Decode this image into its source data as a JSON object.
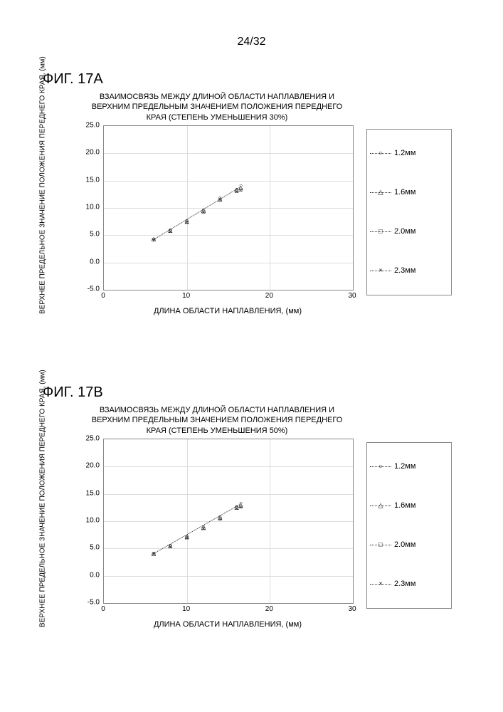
{
  "page_number": "24/32",
  "figA": {
    "label": "ФИГ. 17A",
    "title": "ВЗАИМОСВЯЗЬ МЕЖДУ ДЛИНОЙ ОБЛАСТИ НАПЛАВЛЕНИЯ И ВЕРХНИМ ПРЕДЕЛЬНЫМ ЗНАЧЕНИЕМ ПОЛОЖЕНИЯ ПЕРЕДНЕГО КРАЯ (СТЕПЕНЬ УМЕНЬШЕНИЯ 30%)",
    "ylabel": "ВЕРХНЕЕ ПРЕДЕЛЬНОЕ ЗНАЧЕНИЕ ПОЛОЖЕНИЯ ПЕРЕДНЕГО КРАЯ, (мм)",
    "xlabel": "ДЛИНА ОБЛАСТИ НАПЛАВЛЕНИЯ, (мм)",
    "ylim": [
      -5,
      25
    ],
    "ytick_step": 5,
    "xlim": [
      0,
      30
    ],
    "xtick_step": 10,
    "yticks": [
      "-5.0",
      "0.0",
      "5.0",
      "10.0",
      "15.0",
      "20.0",
      "25.0"
    ],
    "xticks": [
      "0",
      "10",
      "20",
      "30"
    ],
    "series": [
      {
        "name": "1.2мм",
        "marker": "○",
        "x": [
          6,
          8,
          10,
          12,
          14,
          16,
          16.5
        ],
        "y": [
          4.3,
          6.0,
          7.7,
          9.6,
          11.8,
          13.4,
          14.0
        ]
      },
      {
        "name": "1.6мм",
        "marker": "△",
        "x": [
          6,
          8,
          10,
          12,
          14,
          16,
          16.5
        ],
        "y": [
          4.2,
          5.8,
          7.5,
          9.4,
          11.6,
          13.2,
          13.6
        ]
      },
      {
        "name": "2.0мм",
        "marker": "□",
        "x": [
          6,
          8,
          10,
          12,
          14,
          16,
          16.5
        ],
        "y": [
          4.1,
          5.7,
          7.3,
          9.2,
          11.4,
          13.0,
          13.3
        ]
      },
      {
        "name": "2.3мм",
        "marker": "×",
        "x": [
          6,
          8,
          10,
          12,
          14,
          16,
          16.5
        ],
        "y": [
          4.0,
          5.6,
          7.2,
          9.1,
          11.3,
          12.9,
          13.1
        ]
      }
    ],
    "grid_color": "#dddddd",
    "axis_color": "#888888",
    "bg": "#ffffff",
    "marker_size": 8,
    "font_size_ticks": 10,
    "font_size_labels": 11
  },
  "figB": {
    "label": "ФИГ. 17B",
    "title": "ВЗАИМОСВЯЗЬ МЕЖДУ ДЛИНОЙ ОБЛАСТИ НАПЛАВЛЕНИЯ И ВЕРХНИМ ПРЕДЕЛЬНЫМ ЗНАЧЕНИЕМ ПОЛОЖЕНИЯ ПЕРЕДНЕГО КРАЯ (СТЕПЕНЬ УМЕНЬШЕНИЯ 50%)",
    "ylabel": "ВЕРХНЕЕ ПРЕДЕЛЬНОЕ ЗНАЧЕНИЕ ПОЛОЖЕНИЯ ПЕРЕДНЕГО КРАЯ, (мм)",
    "xlabel": "ДЛИНА ОБЛАСТИ НАПЛАВЛЕНИЯ, (мм)",
    "ylim": [
      -5,
      25
    ],
    "ytick_step": 5,
    "xlim": [
      0,
      30
    ],
    "xtick_step": 10,
    "yticks": [
      "-5.0",
      "0.0",
      "5.0",
      "10.0",
      "15.0",
      "20.0",
      "25.0"
    ],
    "xticks": [
      "0",
      "10",
      "20",
      "30"
    ],
    "series": [
      {
        "name": "1.2мм",
        "marker": "○",
        "x": [
          6,
          8,
          10,
          12,
          14,
          16,
          16.5
        ],
        "y": [
          4.1,
          5.6,
          7.3,
          9.0,
          10.8,
          12.7,
          13.2
        ]
      },
      {
        "name": "1.6мм",
        "marker": "△",
        "x": [
          6,
          8,
          10,
          12,
          14,
          16,
          16.5
        ],
        "y": [
          4.0,
          5.4,
          7.1,
          8.8,
          10.6,
          12.5,
          12.9
        ]
      },
      {
        "name": "2.0мм",
        "marker": "□",
        "x": [
          6,
          8,
          10,
          12,
          14,
          16,
          16.5
        ],
        "y": [
          3.9,
          5.3,
          6.9,
          8.6,
          10.4,
          12.3,
          12.6
        ]
      },
      {
        "name": "2.3мм",
        "marker": "×",
        "x": [
          6,
          8,
          10,
          12,
          14,
          16,
          16.5
        ],
        "y": [
          3.8,
          5.2,
          6.8,
          8.5,
          10.3,
          12.2,
          12.4
        ]
      }
    ],
    "grid_color": "#dddddd",
    "axis_color": "#888888",
    "bg": "#ffffff",
    "marker_size": 8,
    "font_size_ticks": 10,
    "font_size_labels": 11
  },
  "legend_labels": [
    "1.2мм",
    "1.6мм",
    "2.0мм",
    "2.3мм"
  ],
  "legend_markers": [
    "○",
    "△",
    "□",
    "×"
  ]
}
